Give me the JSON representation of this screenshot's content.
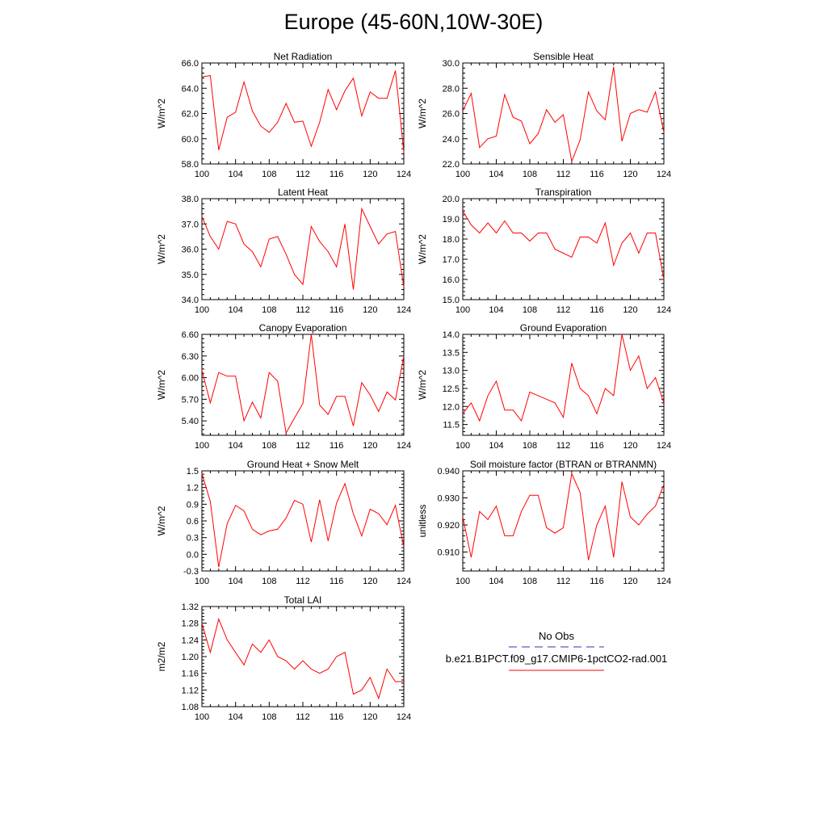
{
  "page_title": "Europe (45-60N,10W-30E)",
  "legend": {
    "obs_label": "No Obs",
    "obs_color": "#3333aa",
    "model_label": "b.e21.B1PCT.f09_g17.CMIP6-1pctCO2-rad.001",
    "model_color": "#ff0000"
  },
  "chart_data": [
    {
      "type": "line",
      "title": "Net Radiation",
      "ylabel": "W/m^2",
      "x": [
        100,
        101,
        102,
        103,
        104,
        105,
        106,
        107,
        108,
        109,
        110,
        111,
        112,
        113,
        114,
        115,
        116,
        117,
        118,
        119,
        120,
        121,
        122,
        123,
        124
      ],
      "xticks": [
        "100",
        "104",
        "108",
        "112",
        "116",
        "120",
        "124"
      ],
      "yticks": [
        "58.0",
        "60.0",
        "62.0",
        "64.0",
        "66.0"
      ],
      "ylim": [
        58,
        66
      ],
      "series": [
        {
          "values": [
            64.9,
            65.0,
            59.1,
            61.7,
            62.1,
            64.5,
            62.2,
            61.0,
            60.5,
            61.3,
            62.8,
            61.3,
            61.4,
            59.4,
            61.3,
            63.9,
            62.3,
            63.8,
            64.8,
            61.8,
            63.7,
            63.2,
            63.2,
            65.4,
            58.9
          ],
          "color": "#ff0000"
        }
      ]
    },
    {
      "type": "line",
      "title": "Sensible Heat",
      "ylabel": "W/m^2",
      "x": [
        100,
        101,
        102,
        103,
        104,
        105,
        106,
        107,
        108,
        109,
        110,
        111,
        112,
        113,
        114,
        115,
        116,
        117,
        118,
        119,
        120,
        121,
        122,
        123,
        124
      ],
      "xticks": [
        "100",
        "104",
        "108",
        "112",
        "116",
        "120",
        "124"
      ],
      "yticks": [
        "22.0",
        "24.0",
        "26.0",
        "28.0",
        "30.0"
      ],
      "ylim": [
        22,
        30
      ],
      "series": [
        {
          "values": [
            26.2,
            27.6,
            23.3,
            24.0,
            24.2,
            27.5,
            25.7,
            25.4,
            23.6,
            24.4,
            26.3,
            25.3,
            25.9,
            22.2,
            23.9,
            27.7,
            26.2,
            25.5,
            29.7,
            23.8,
            26.0,
            26.3,
            26.1,
            27.7,
            24.5
          ],
          "color": "#ff0000"
        }
      ]
    },
    {
      "type": "line",
      "title": "Latent Heat",
      "ylabel": "W/m^2",
      "x": [
        100,
        101,
        102,
        103,
        104,
        105,
        106,
        107,
        108,
        109,
        110,
        111,
        112,
        113,
        114,
        115,
        116,
        117,
        118,
        119,
        120,
        121,
        122,
        123,
        124
      ],
      "xticks": [
        "100",
        "104",
        "108",
        "112",
        "116",
        "120",
        "124"
      ],
      "yticks": [
        "34.0",
        "35.0",
        "36.0",
        "37.0",
        "38.0"
      ],
      "ylim": [
        34,
        38
      ],
      "series": [
        {
          "values": [
            37.3,
            36.5,
            36.0,
            37.1,
            37.0,
            36.2,
            35.9,
            35.3,
            36.4,
            36.5,
            35.8,
            35.0,
            34.6,
            36.9,
            36.3,
            35.9,
            35.3,
            37.0,
            34.4,
            37.6,
            36.9,
            36.2,
            36.6,
            36.7,
            34.5
          ],
          "color": "#ff0000"
        }
      ]
    },
    {
      "type": "line",
      "title": "Transpiration",
      "ylabel": "W/m^2",
      "x": [
        100,
        101,
        102,
        103,
        104,
        105,
        106,
        107,
        108,
        109,
        110,
        111,
        112,
        113,
        114,
        115,
        116,
        117,
        118,
        119,
        120,
        121,
        122,
        123,
        124
      ],
      "xticks": [
        "100",
        "104",
        "108",
        "112",
        "116",
        "120",
        "124"
      ],
      "yticks": [
        "15.0",
        "16.0",
        "17.0",
        "18.0",
        "19.0",
        "20.0"
      ],
      "ylim": [
        15,
        20
      ],
      "series": [
        {
          "values": [
            19.4,
            18.7,
            18.3,
            18.8,
            18.3,
            18.9,
            18.3,
            18.3,
            17.9,
            18.3,
            18.3,
            17.5,
            17.3,
            17.1,
            18.1,
            18.1,
            17.8,
            18.8,
            16.7,
            17.8,
            18.3,
            17.3,
            18.3,
            18.3,
            16.0
          ],
          "color": "#ff0000"
        }
      ]
    },
    {
      "type": "line",
      "title": "Canopy Evaporation",
      "ylabel": "W/m^2",
      "x": [
        100,
        101,
        102,
        103,
        104,
        105,
        106,
        107,
        108,
        109,
        110,
        111,
        112,
        113,
        114,
        115,
        116,
        117,
        118,
        119,
        120,
        121,
        122,
        123,
        124
      ],
      "xticks": [
        "100",
        "104",
        "108",
        "112",
        "116",
        "120",
        "124"
      ],
      "yticks": [
        "5.40",
        "5.70",
        "6.00",
        "6.30",
        "6.60"
      ],
      "ylim": [
        5.2,
        6.6
      ],
      "series": [
        {
          "values": [
            6.1,
            5.65,
            6.07,
            6.02,
            6.02,
            5.4,
            5.66,
            5.44,
            6.07,
            5.95,
            5.23,
            5.44,
            5.64,
            6.6,
            5.62,
            5.49,
            5.74,
            5.74,
            5.33,
            5.93,
            5.76,
            5.53,
            5.8,
            5.69,
            6.3
          ],
          "color": "#ff0000"
        }
      ]
    },
    {
      "type": "line",
      "title": "Ground Evaporation",
      "ylabel": "W/m^2",
      "x": [
        100,
        101,
        102,
        103,
        104,
        105,
        106,
        107,
        108,
        109,
        110,
        111,
        112,
        113,
        114,
        115,
        116,
        117,
        118,
        119,
        120,
        121,
        122,
        123,
        124
      ],
      "xticks": [
        "100",
        "104",
        "108",
        "112",
        "116",
        "120",
        "124"
      ],
      "yticks": [
        "11.5",
        "12.0",
        "12.5",
        "13.0",
        "13.5",
        "14.0"
      ],
      "ylim": [
        11.2,
        14.0
      ],
      "series": [
        {
          "values": [
            11.8,
            12.1,
            11.6,
            12.3,
            12.7,
            11.9,
            11.9,
            11.6,
            12.4,
            12.3,
            12.2,
            12.1,
            11.7,
            13.2,
            12.5,
            12.3,
            11.8,
            12.5,
            12.3,
            14.0,
            13.0,
            13.4,
            12.5,
            12.8,
            12.1
          ],
          "color": "#ff0000"
        }
      ]
    },
    {
      "type": "line",
      "title": "Ground Heat + Snow Melt",
      "ylabel": "W/m^2",
      "x": [
        100,
        101,
        102,
        103,
        104,
        105,
        106,
        107,
        108,
        109,
        110,
        111,
        112,
        113,
        114,
        115,
        116,
        117,
        118,
        119,
        120,
        121,
        122,
        123,
        124
      ],
      "xticks": [
        "100",
        "104",
        "108",
        "112",
        "116",
        "120",
        "124"
      ],
      "yticks": [
        "-0.3",
        "0.0",
        "0.3",
        "0.6",
        "0.9",
        "1.2",
        "1.5"
      ],
      "ylim": [
        -0.3,
        1.5
      ],
      "series": [
        {
          "values": [
            1.45,
            0.95,
            -0.23,
            0.55,
            0.88,
            0.78,
            0.45,
            0.35,
            0.42,
            0.45,
            0.65,
            0.97,
            0.9,
            0.22,
            0.98,
            0.24,
            0.92,
            1.27,
            0.73,
            0.33,
            0.81,
            0.73,
            0.53,
            0.88,
            0.13
          ],
          "color": "#ff0000"
        }
      ]
    },
    {
      "type": "line",
      "title": "Soil moisture factor (BTRAN or BTRANMN)",
      "ylabel": "unitless",
      "x": [
        100,
        101,
        102,
        103,
        104,
        105,
        106,
        107,
        108,
        109,
        110,
        111,
        112,
        113,
        114,
        115,
        116,
        117,
        118,
        119,
        120,
        121,
        122,
        123,
        124
      ],
      "xticks": [
        "100",
        "104",
        "108",
        "112",
        "116",
        "120",
        "124"
      ],
      "yticks": [
        "0.910",
        "0.920",
        "0.930",
        "0.940"
      ],
      "ylim": [
        0.903,
        0.94
      ],
      "series": [
        {
          "values": [
            0.923,
            0.908,
            0.925,
            0.922,
            0.927,
            0.916,
            0.916,
            0.925,
            0.931,
            0.931,
            0.919,
            0.917,
            0.919,
            0.939,
            0.932,
            0.907,
            0.92,
            0.927,
            0.908,
            0.936,
            0.923,
            0.92,
            0.924,
            0.927,
            0.935
          ],
          "color": "#ff0000"
        }
      ]
    },
    {
      "type": "line",
      "title": "Total LAI",
      "ylabel": "m2/m2",
      "x": [
        100,
        101,
        102,
        103,
        104,
        105,
        106,
        107,
        108,
        109,
        110,
        111,
        112,
        113,
        114,
        115,
        116,
        117,
        118,
        119,
        120,
        121,
        122,
        123,
        124
      ],
      "xticks": [
        "100",
        "104",
        "108",
        "112",
        "116",
        "120",
        "124"
      ],
      "yticks": [
        "1.08",
        "1.12",
        "1.16",
        "1.20",
        "1.24",
        "1.28",
        "1.32"
      ],
      "ylim": [
        1.08,
        1.32
      ],
      "series": [
        {
          "values": [
            1.28,
            1.21,
            1.29,
            1.24,
            1.21,
            1.18,
            1.23,
            1.21,
            1.24,
            1.2,
            1.19,
            1.17,
            1.19,
            1.17,
            1.16,
            1.17,
            1.2,
            1.21,
            1.11,
            1.12,
            1.15,
            1.1,
            1.17,
            1.14,
            1.14
          ],
          "color": "#ff0000"
        }
      ]
    }
  ]
}
